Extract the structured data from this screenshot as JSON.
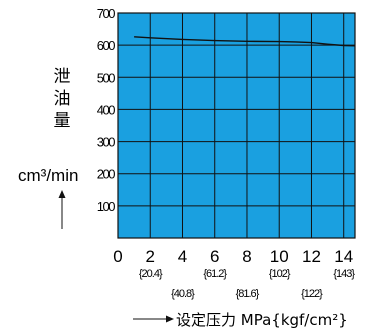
{
  "chart_data": {
    "type": "line",
    "title": "",
    "ylabel_cjk": [
      "泄",
      "油",
      "量"
    ],
    "ylabel_unit": "cm³/min",
    "xlabel": "设定压力 MPa{kgf/cm²}",
    "x_ticks": [
      "0",
      "2",
      "4",
      "6",
      "8",
      "10",
      "12",
      "14"
    ],
    "x_subticks": [
      "{20.4}",
      "{40.8}",
      "{61.2}",
      "{81.6}",
      "{102}",
      "{122}",
      "{143}"
    ],
    "y_ticks": [
      "100",
      "200",
      "300",
      "400",
      "500",
      "600",
      "700"
    ],
    "xlim": [
      0,
      14.7
    ],
    "ylim": [
      0,
      700
    ],
    "grid": true,
    "plot_background": "#1aa0e0",
    "series": [
      {
        "x": [
          1,
          2,
          4,
          6,
          8,
          10,
          11,
          12,
          13,
          14,
          14.7
        ],
        "y": [
          626,
          623,
          618,
          614,
          612,
          611,
          610,
          608,
          603,
          599,
          598
        ],
        "color": "#111111"
      }
    ]
  }
}
